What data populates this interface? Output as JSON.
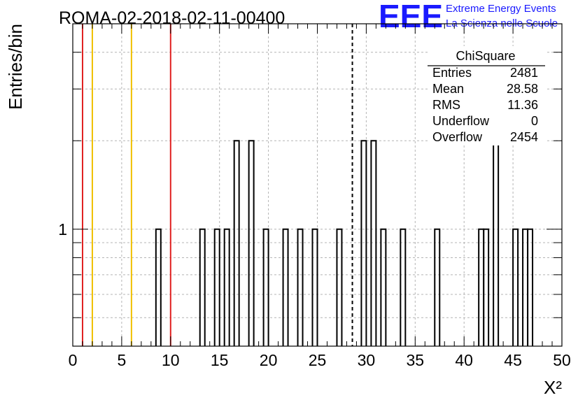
{
  "chart_data": {
    "type": "bar",
    "title": "ROMA-02-2018-02-11-00400",
    "xlabel": "X²",
    "ylabel": "Entries/bin",
    "y_scale": "log",
    "xlim": [
      0,
      50
    ],
    "ylim": [
      0.4,
      5
    ],
    "x_ticks": [
      "0",
      "5",
      "10",
      "15",
      "20",
      "25",
      "30",
      "35",
      "40",
      "45",
      "50"
    ],
    "y_tick_labels": [
      {
        "value": 1,
        "label": "1"
      }
    ],
    "grid": true,
    "bin_width": 0.5,
    "bins": [
      {
        "x": 8.5,
        "count": 1
      },
      {
        "x": 13.0,
        "count": 1
      },
      {
        "x": 14.5,
        "count": 1
      },
      {
        "x": 15.5,
        "count": 1
      },
      {
        "x": 16.5,
        "count": 2
      },
      {
        "x": 18.0,
        "count": 2
      },
      {
        "x": 19.5,
        "count": 1
      },
      {
        "x": 21.5,
        "count": 1
      },
      {
        "x": 23.0,
        "count": 1
      },
      {
        "x": 24.5,
        "count": 1
      },
      {
        "x": 27.0,
        "count": 1
      },
      {
        "x": 29.5,
        "count": 2
      },
      {
        "x": 30.5,
        "count": 2
      },
      {
        "x": 31.5,
        "count": 1
      },
      {
        "x": 33.5,
        "count": 1
      },
      {
        "x": 37.0,
        "count": 1
      },
      {
        "x": 41.5,
        "count": 1
      },
      {
        "x": 42.0,
        "count": 1
      },
      {
        "x": 43.0,
        "count": 2
      },
      {
        "x": 45.0,
        "count": 1
      },
      {
        "x": 46.0,
        "count": 1
      },
      {
        "x": 46.5,
        "count": 1
      }
    ],
    "vertical_lines": [
      {
        "x": 1,
        "color": "#e02020",
        "style": "solid"
      },
      {
        "x": 2,
        "color": "#f0c000",
        "style": "solid"
      },
      {
        "x": 6,
        "color": "#f0c000",
        "style": "solid"
      },
      {
        "x": 10,
        "color": "#e02020",
        "style": "solid"
      },
      {
        "x": 28.58,
        "color": "#000000",
        "style": "dashed"
      }
    ],
    "stats_box": {
      "title": "ChiSquare",
      "rows": [
        {
          "label": "Entries",
          "value": "2481"
        },
        {
          "label": "Mean",
          "value": "28.58"
        },
        {
          "label": "RMS",
          "value": "11.36"
        },
        {
          "label": "Underflow",
          "value": "0"
        },
        {
          "label": "Overflow",
          "value": "2454"
        }
      ]
    }
  },
  "logo": {
    "mark": "EEE",
    "line1": "Extreme Energy Events",
    "line2": "La Scienza nelle Scuole",
    "color": "#1a1aff"
  }
}
